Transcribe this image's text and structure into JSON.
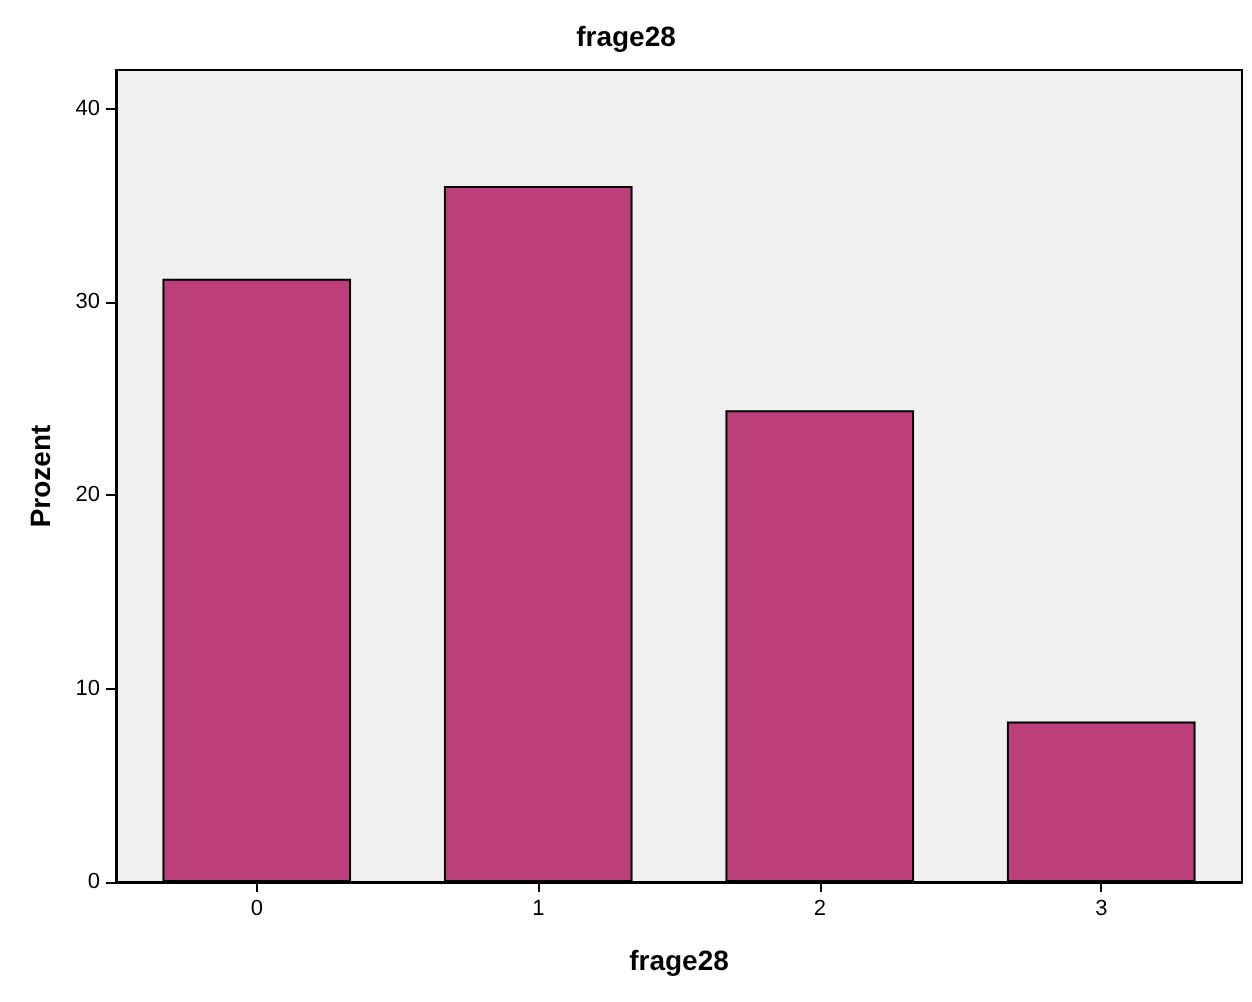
{
  "chart_data": {
    "type": "bar",
    "title": "frage28",
    "xlabel": "frage28",
    "ylabel": "Prozent",
    "categories": [
      "0",
      "1",
      "2",
      "3"
    ],
    "values": [
      31.2,
      36.0,
      24.4,
      8.3
    ],
    "color": "#bc3f7c",
    "ylim": [
      0,
      42
    ],
    "yticks": [
      0,
      10,
      20,
      30,
      40
    ],
    "grid": false
  }
}
